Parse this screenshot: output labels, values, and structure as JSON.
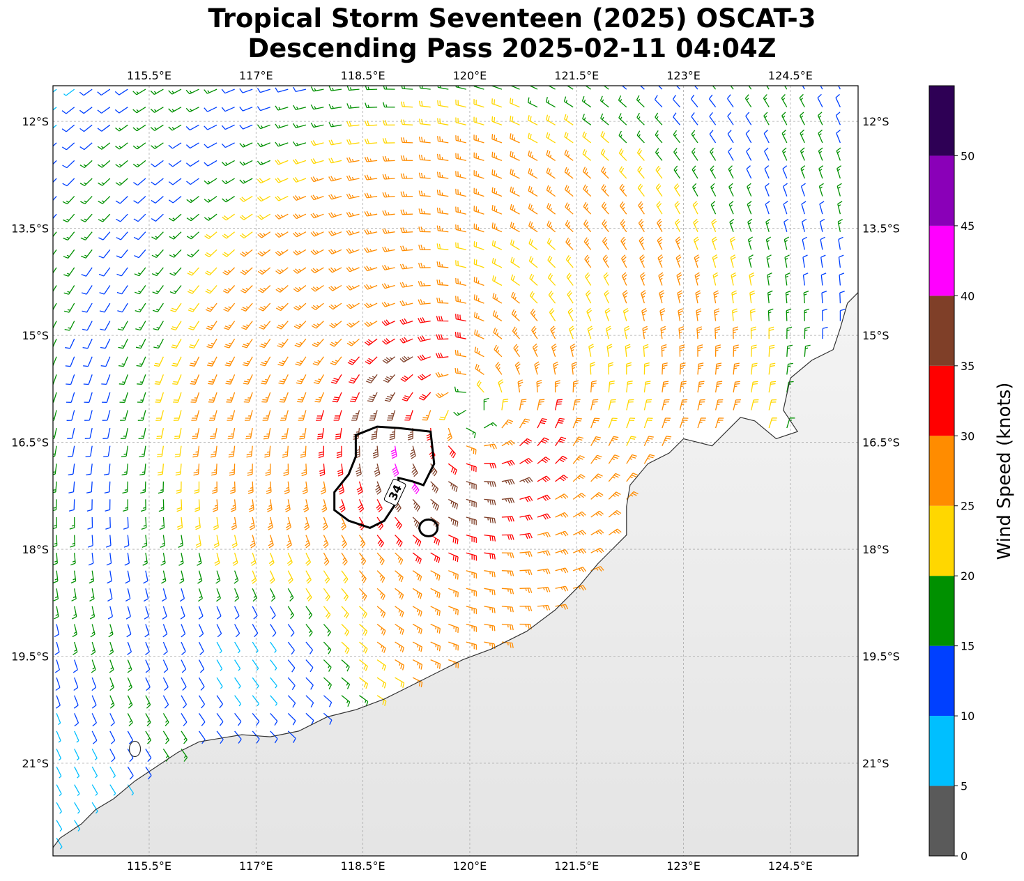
{
  "title_line1": "Tropical Storm Seventeen (2025) OSCAT-3",
  "title_line2": "Descending Pass 2025-02-11 04:04Z",
  "chart_data": {
    "type": "map-wind-barbs",
    "lon_ticks": [
      {
        "value": 115.5,
        "label": "115.5°E"
      },
      {
        "value": 117.0,
        "label": "117°E"
      },
      {
        "value": 118.5,
        "label": "118.5°E"
      },
      {
        "value": 120.0,
        "label": "120°E"
      },
      {
        "value": 121.5,
        "label": "121.5°E"
      },
      {
        "value": 123.0,
        "label": "123°E"
      },
      {
        "value": 124.5,
        "label": "124.5°E"
      }
    ],
    "lat_ticks": [
      {
        "value": -12.0,
        "label": "12°S"
      },
      {
        "value": -13.5,
        "label": "13.5°S"
      },
      {
        "value": -15.0,
        "label": "15°S"
      },
      {
        "value": -16.5,
        "label": "16.5°S"
      },
      {
        "value": -18.0,
        "label": "18°S"
      },
      {
        "value": -19.5,
        "label": "19.5°S"
      },
      {
        "value": -21.0,
        "label": "21°S"
      }
    ],
    "lon_range": [
      114.15,
      125.45
    ],
    "lat_range": [
      -22.3,
      -11.5
    ],
    "grid": true,
    "storm_center": {
      "lon": 120.0,
      "lat": -16.1
    },
    "contour": {
      "level": 34,
      "label": "34"
    },
    "colorbar": {
      "label": "Wind Speed (knots)",
      "range": [
        0,
        55
      ],
      "ticks": [
        0,
        5,
        10,
        15,
        20,
        25,
        30,
        35,
        40,
        45,
        50
      ],
      "bins": [
        {
          "min": 0,
          "max": 5,
          "color": "#5a5a5a"
        },
        {
          "min": 5,
          "max": 10,
          "color": "#00bfff"
        },
        {
          "min": 10,
          "max": 15,
          "color": "#0040ff"
        },
        {
          "min": 15,
          "max": 20,
          "color": "#009000"
        },
        {
          "min": 20,
          "max": 25,
          "color": "#ffd700"
        },
        {
          "min": 25,
          "max": 30,
          "color": "#ff8c00"
        },
        {
          "min": 30,
          "max": 35,
          "color": "#ff0000"
        },
        {
          "min": 35,
          "max": 40,
          "color": "#7f3f28"
        },
        {
          "min": 40,
          "max": 45,
          "color": "#ff00ff"
        },
        {
          "min": 45,
          "max": 50,
          "color": "#8a00b8"
        },
        {
          "min": 50,
          "max": 55,
          "color": "#2e0055"
        }
      ]
    },
    "land_color": "#eeeeee",
    "coast_color": "#333333"
  }
}
